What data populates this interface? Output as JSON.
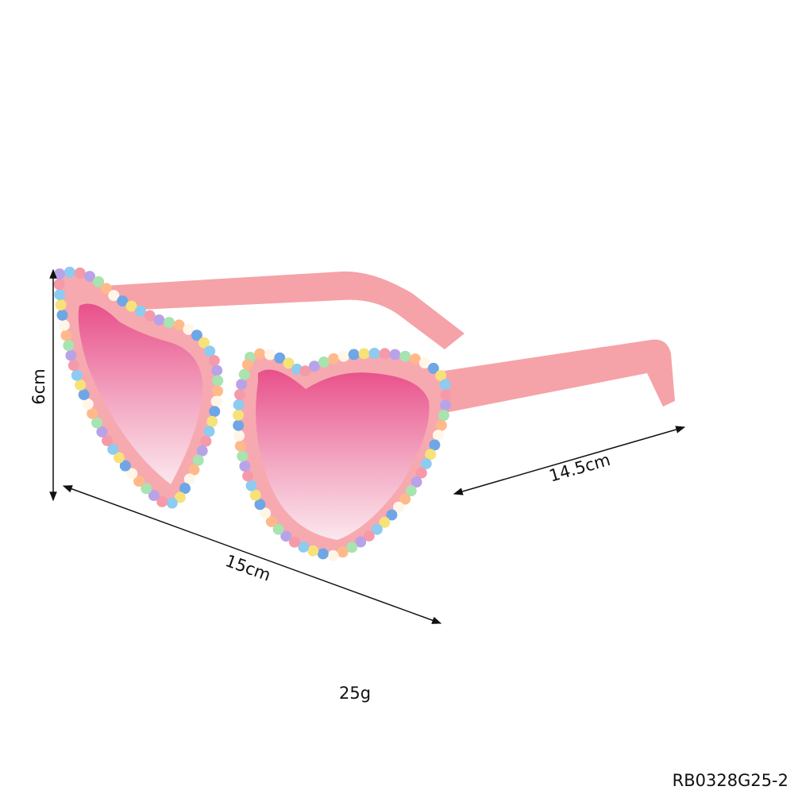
{
  "dimensions": {
    "height": "6cm",
    "width": "15cm",
    "temple_length": "14.5cm"
  },
  "weight": "25g",
  "product_code": "RB0328G25-2"
}
